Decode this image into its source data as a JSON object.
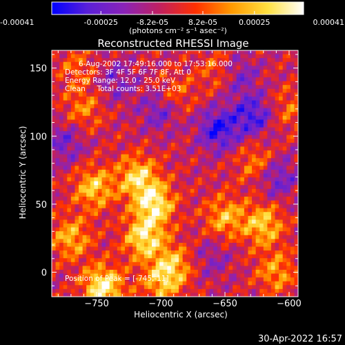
{
  "chart_data": {
    "type": "heatmap",
    "title": "Reconstructed RHESSI Image",
    "xlabel": "Heliocentric X (arcsec)",
    "ylabel": "Heliocentric Y (arcsec)",
    "xlim": [
      -785,
      -593
    ],
    "ylim": [
      -18,
      163
    ],
    "x_ticks": [
      -750,
      -700,
      -650,
      -600
    ],
    "y_ticks": [
      0,
      50,
      100,
      150
    ],
    "colorbar": {
      "range": [
        -0.00041,
        0.00041
      ],
      "tick_values": [
        -0.00041,
        -0.00025,
        -8.2e-05,
        8.2e-05,
        0.00025,
        0.00041
      ],
      "tick_labels": [
        "-0.00041",
        "-0.00025",
        "-8.2e-05",
        "8.2e-05",
        "0.00025",
        "0.00041"
      ],
      "units_label": "(photons cm⁻² s⁻¹ asec⁻²)",
      "colors": [
        "#0000ff",
        "#5a20d8",
        "#8a23b8",
        "#c02060",
        "#ff3000",
        "#ff9a00",
        "#ffe040",
        "#ffffff"
      ]
    },
    "annotations": {
      "time": "6-Aug-2002 17:49:16.000 to 17:53:16.000",
      "detectors": "Detectors: 3F 4F 5F 6F 7F 8F, Att 0",
      "energy": "Energy Range: 12.0 - 25.0 keV",
      "method": "Clean     Total counts: 3.51E+03",
      "peak": "Position of Peak = [-745,-11]"
    },
    "peak_position": [
      -745,
      -11
    ],
    "bright_sources": [
      {
        "x": -745,
        "y": -11,
        "intensity": 0.00041
      },
      {
        "x": -705,
        "y": 50,
        "intensity": 0.00038
      },
      {
        "x": -713,
        "y": 25,
        "intensity": 0.00036
      },
      {
        "x": -718,
        "y": 70,
        "intensity": 0.00032
      },
      {
        "x": -752,
        "y": 62,
        "intensity": 0.0003
      },
      {
        "x": -620,
        "y": 35,
        "intensity": 0.0003
      },
      {
        "x": -770,
        "y": 25,
        "intensity": 0.00026
      },
      {
        "x": -650,
        "y": 40,
        "intensity": 0.00026
      },
      {
        "x": -690,
        "y": 5,
        "intensity": 0.00025
      },
      {
        "x": -700,
        "y": -8,
        "intensity": 0.00024
      },
      {
        "x": -610,
        "y": 0,
        "intensity": 0.00022
      },
      {
        "x": -625,
        "y": 80,
        "intensity": 0.0002
      },
      {
        "x": -760,
        "y": 120,
        "intensity": 0.00018
      },
      {
        "x": -690,
        "y": 130,
        "intensity": 0.00018
      },
      {
        "x": -765,
        "y": 150,
        "intensity": 0.00014
      },
      {
        "x": -655,
        "y": 148,
        "intensity": 0.00016
      },
      {
        "x": -600,
        "y": 120,
        "intensity": 0.00015
      }
    ],
    "negative_regions": [
      {
        "x": -655,
        "y": 105,
        "intensity": -0.0003
      },
      {
        "x": -628,
        "y": 115,
        "intensity": -0.00027
      },
      {
        "x": -700,
        "y": 120,
        "intensity": -0.00022
      },
      {
        "x": -775,
        "y": 95,
        "intensity": -0.00018
      },
      {
        "x": -610,
        "y": 70,
        "intensity": -0.00022
      },
      {
        "x": -640,
        "y": 145,
        "intensity": -0.00018
      },
      {
        "x": -735,
        "y": 140,
        "intensity": -0.00015
      },
      {
        "x": -660,
        "y": 10,
        "intensity": -0.00012
      }
    ]
  },
  "footer": {
    "timestamp": "30-Apr-2022 16:57"
  }
}
